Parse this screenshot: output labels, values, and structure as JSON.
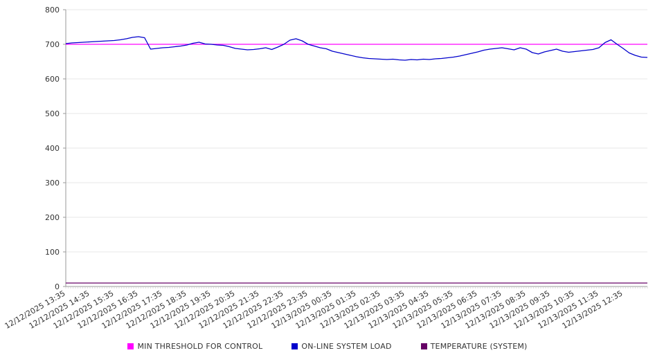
{
  "chart_data": {
    "type": "line",
    "title": "",
    "xlabel": "",
    "ylabel": "",
    "ylim": [
      0,
      800
    ],
    "y_ticks": [
      0,
      100,
      200,
      300,
      400,
      500,
      600,
      700,
      800
    ],
    "grid": "horizontal",
    "legend_position": "bottom",
    "points_per_label": 4,
    "point_count": 97,
    "x_labels": [
      "12/12/2025 13:35",
      "12/12/2025 14:35",
      "12/12/2025 15:35",
      "12/12/2025 16:35",
      "12/12/2025 17:35",
      "12/12/2025 18:35",
      "12/12/2025 19:35",
      "12/12/2025 20:35",
      "12/12/2025 21:35",
      "12/12/2025 22:35",
      "12/12/2025 23:35",
      "12/13/2025 00:35",
      "12/13/2025 01:35",
      "12/13/2025 02:35",
      "12/13/2025 03:35",
      "12/13/2025 04:35",
      "12/13/2025 05:35",
      "12/13/2025 06:35",
      "12/13/2025 07:35",
      "12/13/2025 08:35",
      "12/13/2025 09:35",
      "12/13/2025 10:35",
      "12/13/2025 11:35",
      "12/13/2025 12:35"
    ],
    "series": [
      {
        "name": "MIN THRESHOLD FOR CONTROL",
        "color": "#ff00ff",
        "type": "hline",
        "value": 700
      },
      {
        "name": "ON-LINE SYSTEM LOAD",
        "color": "#0000cc",
        "type": "line",
        "values": [
          702,
          704,
          705,
          706,
          707,
          708,
          709,
          710,
          711,
          713,
          716,
          720,
          722,
          719,
          686,
          688,
          690,
          691,
          693,
          695,
          698,
          703,
          706,
          701,
          700,
          698,
          697,
          693,
          688,
          686,
          684,
          685,
          687,
          690,
          685,
          692,
          700,
          712,
          716,
          710,
          700,
          695,
          690,
          687,
          680,
          676,
          672,
          668,
          664,
          661,
          659,
          658,
          657,
          656,
          657,
          655,
          654,
          656,
          655,
          657,
          656,
          658,
          659,
          661,
          663,
          666,
          670,
          674,
          678,
          683,
          686,
          688,
          690,
          687,
          684,
          690,
          686,
          676,
          672,
          678,
          682,
          686,
          680,
          677,
          679,
          681,
          683,
          685,
          690,
          705,
          713,
          700,
          688,
          675,
          668,
          663,
          662
        ]
      },
      {
        "name": "TEMPERATURE (SYSTEM)",
        "color": "#660066",
        "type": "hline",
        "value": 10
      }
    ]
  }
}
